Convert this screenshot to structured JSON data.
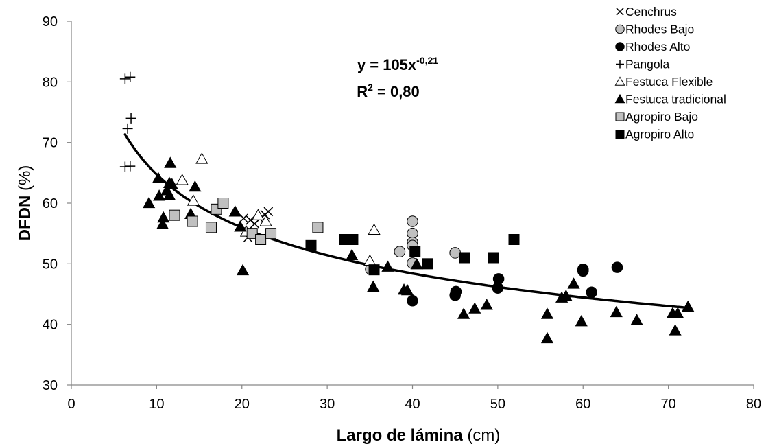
{
  "chart_data": {
    "type": "scatter",
    "title": "",
    "xlabel_bold": "Largo de lámina",
    "xlabel_unit": " (cm)",
    "ylabel_bold": "DFDN",
    "ylabel_unit": " (%)",
    "xlim": [
      0,
      80
    ],
    "ylim": [
      30,
      90
    ],
    "x_ticks": [
      "0",
      "10",
      "20",
      "30",
      "40",
      "50",
      "60",
      "70",
      "80"
    ],
    "y_ticks": [
      "30",
      "40",
      "50",
      "60",
      "70",
      "80",
      "90"
    ],
    "grid": false,
    "legend_position": "top-right",
    "trendline": {
      "type": "power",
      "a": 105,
      "b": -0.21,
      "x_range": [
        6.3,
        72.3
      ],
      "equation_main": "y = 105x",
      "equation_exp": "-0,21",
      "r2_prefix": "R",
      "r2_sup": "2",
      "r2_suffix": " = 0,80"
    },
    "series": [
      {
        "name": "Cenchrus",
        "marker": "x",
        "fill": "#000000",
        "points": [
          [
            20.2,
            57.5
          ],
          [
            20.7,
            54.3
          ],
          [
            21.0,
            57.2
          ],
          [
            21.5,
            56.6
          ],
          [
            22.1,
            57.4
          ],
          [
            22.7,
            58.1
          ],
          [
            23.1,
            58.6
          ]
        ]
      },
      {
        "name": "Rhodes Bajo",
        "marker": "circle",
        "fill": "#c0c0c0",
        "points": [
          [
            35.1,
            49.1
          ],
          [
            38.5,
            52.0
          ],
          [
            40.0,
            57.0
          ],
          [
            40.0,
            55.0
          ],
          [
            40.0,
            53.5
          ],
          [
            40.0,
            53.0
          ],
          [
            40.0,
            50.1
          ],
          [
            45.0,
            51.8
          ]
        ]
      },
      {
        "name": "Rhodes Alto",
        "marker": "circle",
        "fill": "#000000",
        "points": [
          [
            40.0,
            43.9
          ],
          [
            45.0,
            44.8
          ],
          [
            45.1,
            45.4
          ],
          [
            50.0,
            46.0
          ],
          [
            50.1,
            47.5
          ],
          [
            60.0,
            48.8
          ],
          [
            60.0,
            49.1
          ],
          [
            61.0,
            45.3
          ],
          [
            64.0,
            49.4
          ]
        ]
      },
      {
        "name": "Pangola",
        "marker": "plus",
        "fill": "#000000",
        "points": [
          [
            6.3,
            80.5
          ],
          [
            6.9,
            80.8
          ],
          [
            6.6,
            72.3
          ],
          [
            7.0,
            74.0
          ],
          [
            6.3,
            66.0
          ],
          [
            6.9,
            66.1
          ]
        ]
      },
      {
        "name": "Festuca Flexible",
        "marker": "tri-open",
        "fill": "#ffffff",
        "points": [
          [
            13.0,
            63.8
          ],
          [
            14.3,
            60.4
          ],
          [
            15.3,
            67.3
          ],
          [
            20.5,
            55.3
          ],
          [
            21.9,
            58.0
          ],
          [
            22.8,
            57.0
          ],
          [
            35.0,
            50.5
          ],
          [
            35.5,
            55.6
          ]
        ]
      },
      {
        "name": "Festuca tradicional",
        "marker": "tri-filled",
        "fill": "#000000",
        "points": [
          [
            9.1,
            60.0
          ],
          [
            10.2,
            64.1
          ],
          [
            10.3,
            61.2
          ],
          [
            10.7,
            56.5
          ],
          [
            10.8,
            57.6
          ],
          [
            11.2,
            62.1
          ],
          [
            11.5,
            61.3
          ],
          [
            11.6,
            66.6
          ],
          [
            11.8,
            63.1
          ],
          [
            11.5,
            63.3
          ],
          [
            14.0,
            58.2
          ],
          [
            14.5,
            62.7
          ],
          [
            19.2,
            58.6
          ],
          [
            19.8,
            56.1
          ],
          [
            20.1,
            48.9
          ],
          [
            32.9,
            51.4
          ],
          [
            35.4,
            46.2
          ],
          [
            37.1,
            49.5
          ],
          [
            39.0,
            45.7
          ],
          [
            39.4,
            45.6
          ],
          [
            40.5,
            49.9
          ],
          [
            46.0,
            41.7
          ],
          [
            47.3,
            42.6
          ],
          [
            48.7,
            43.2
          ],
          [
            55.8,
            41.7
          ],
          [
            55.8,
            37.7
          ],
          [
            57.5,
            44.4
          ],
          [
            58.0,
            44.7
          ],
          [
            58.9,
            46.7
          ],
          [
            59.8,
            40.5
          ],
          [
            63.9,
            42.0
          ],
          [
            66.3,
            40.7
          ],
          [
            70.5,
            41.8
          ],
          [
            70.8,
            39.0
          ],
          [
            71.1,
            41.8
          ],
          [
            72.3,
            42.9
          ]
        ]
      },
      {
        "name": "Agropiro Bajo",
        "marker": "square",
        "fill": "#c0c0c0",
        "points": [
          [
            12.1,
            58.0
          ],
          [
            14.2,
            57.0
          ],
          [
            16.4,
            56.0
          ],
          [
            17.0,
            59.0
          ],
          [
            17.8,
            60.0
          ],
          [
            21.2,
            55.0
          ],
          [
            22.2,
            54.0
          ],
          [
            23.4,
            55.0
          ],
          [
            28.9,
            56.0
          ]
        ]
      },
      {
        "name": "Agropiro Alto",
        "marker": "square",
        "fill": "#000000",
        "points": [
          [
            28.1,
            53.0
          ],
          [
            32.0,
            54.0
          ],
          [
            33.0,
            54.0
          ],
          [
            35.5,
            49.0
          ],
          [
            40.3,
            52.0
          ],
          [
            41.8,
            50.0
          ],
          [
            46.1,
            51.0
          ],
          [
            49.5,
            51.0
          ],
          [
            51.9,
            54.0
          ]
        ]
      }
    ]
  }
}
